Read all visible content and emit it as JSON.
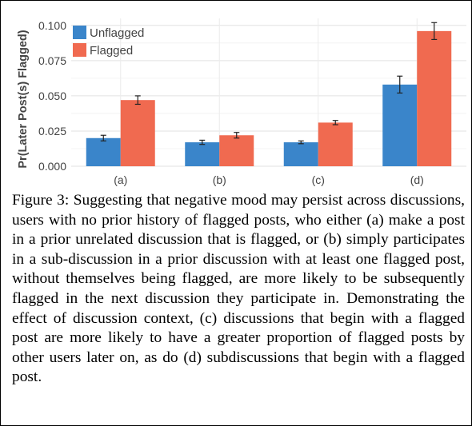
{
  "chart_data": {
    "type": "bar",
    "categories": [
      "(a)",
      "(b)",
      "(c)",
      "(d)"
    ],
    "series": [
      {
        "name": "Unflagged",
        "color": "#3A85CA",
        "values": [
          0.02,
          0.017,
          0.017,
          0.058
        ],
        "errors": [
          0.002,
          0.0015,
          0.001,
          0.006
        ]
      },
      {
        "name": "Flagged",
        "color": "#F06A50",
        "values": [
          0.047,
          0.022,
          0.031,
          0.096
        ],
        "errors": [
          0.003,
          0.002,
          0.0015,
          0.006
        ]
      }
    ],
    "ylabel": "Pr(Later Post(s) Flagged)",
    "xlabel": "",
    "ylim": [
      0,
      0.105
    ],
    "yticks": [
      0.0,
      0.025,
      0.05,
      0.075,
      0.1
    ],
    "ytick_labels": [
      "0.000",
      "0.025",
      "0.050",
      "0.075",
      "0.100"
    ],
    "grid": true,
    "legend_position": "top-left"
  },
  "caption": "Figure 3: Suggesting that negative mood may persist across discussions, users with no prior history of flagged posts, who either (a) make a post in a prior unrelated discussion that is flagged, or (b) simply participates in a sub-discussion in a prior discussion with at least one flagged post, without themselves being flagged, are more likely to be subsequently flagged in the next discussion they participate in. Demonstrating the effect of discussion context, (c) discussions that begin with a flagged post are more likely to have a greater proportion of flagged posts by other users later on, as do (d) subdiscussions that begin with a flagged post."
}
